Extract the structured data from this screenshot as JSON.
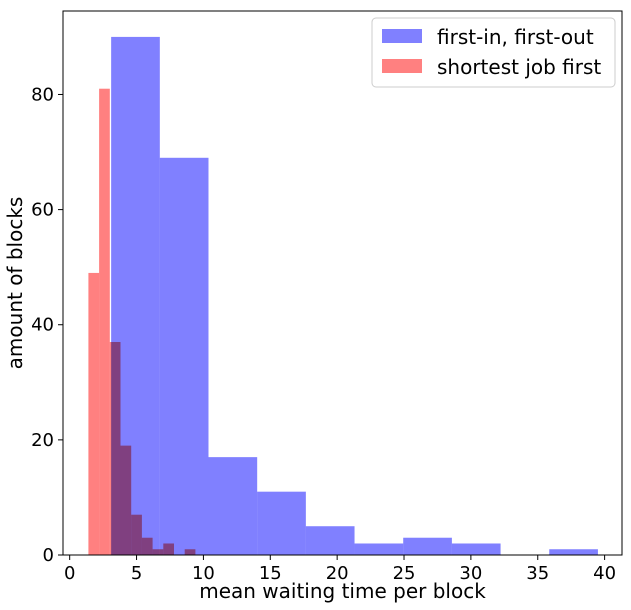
{
  "chart_data": {
    "type": "bar",
    "subtype": "overlapping-histogram",
    "xlabel": "mean waiting time per block",
    "ylabel": "amount of blocks",
    "xlim": [
      -0.5,
      41.3
    ],
    "ylim": [
      0,
      94.5
    ],
    "xticks": [
      0,
      5,
      10,
      15,
      20,
      25,
      30,
      35,
      40
    ],
    "yticks": [
      0,
      20,
      40,
      60,
      80
    ],
    "grid": false,
    "legend_position": "top-right",
    "series": [
      {
        "name": "first-in, first-out",
        "color": "#8080ff",
        "bin_edges": [
          3.1,
          6.74,
          10.38,
          14.02,
          17.66,
          21.3,
          24.94,
          28.58,
          32.22,
          35.86,
          39.5
        ],
        "values": [
          90,
          69,
          17,
          11,
          5,
          2,
          3,
          2,
          0,
          1
        ]
      },
      {
        "name": "shortest job first",
        "color": "#ff8080",
        "bin_edges": [
          1.4,
          2.2,
          3.0,
          3.8,
          4.6,
          5.4,
          6.2,
          7.0,
          7.8,
          8.6,
          9.4
        ],
        "values": [
          49,
          81,
          37,
          19,
          7,
          3,
          1,
          2,
          0,
          1
        ]
      }
    ]
  }
}
